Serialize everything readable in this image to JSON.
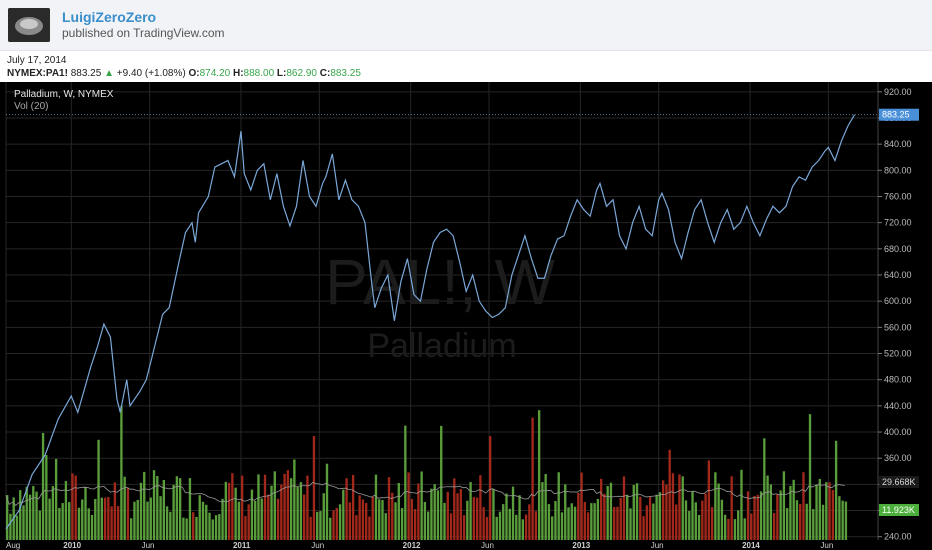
{
  "header": {
    "author": "LuigiZeroZero",
    "published": "published on TradingView.com"
  },
  "date": "July 17, 2014",
  "quote": {
    "symbol": "NYMEX:PA1!",
    "last": "883.25",
    "change": "+9.40 (+1.08%)",
    "open_label": "O:",
    "open": "874.20",
    "high_label": "H:",
    "high": "888.00",
    "low_label": "L:",
    "low": "862.90",
    "close_label": "C:",
    "close": "883.25"
  },
  "chart_data": {
    "type": "line",
    "legend_title": "Palladium, W, NYMEX",
    "volume_label": "Vol (20)",
    "watermark_symbol": "PAL!, W",
    "watermark_name": "Palladium",
    "colors": {
      "background": "#000000",
      "price_line": "#7aa7d8",
      "volume_up": "#5a9e3c",
      "volume_down": "#a2281b",
      "volume_ma": "#9a9a9a",
      "last_price_badge": "#4a90d9",
      "volume_badge": "#4caf3c"
    },
    "grid": true,
    "price_axis": {
      "ticks": [
        240,
        280,
        320,
        360,
        400,
        440,
        480,
        520,
        560,
        600,
        640,
        680,
        720,
        760,
        800,
        840,
        880,
        920
      ],
      "labels": [
        "240.00",
        "280.00",
        "320.00",
        "360.00",
        "400.00",
        "440.00",
        "480.00",
        "520.00",
        "560.00",
        "600.00",
        "640.00",
        "680.00",
        "720.00",
        "760.00",
        "800.00",
        "840.00",
        "880.00",
        "920.00"
      ],
      "range": [
        235,
        935
      ]
    },
    "last_price_label": "883.25",
    "volume_ma_label": "29.668K",
    "volume_last_label": "11.923K",
    "x_axis": {
      "labels": [
        "Aug",
        "2010",
        "Jun",
        "2011",
        "Jun",
        "2012",
        "Jun",
        "2013",
        "Jun",
        "2014",
        "Jun"
      ],
      "positions": [
        0,
        20,
        44,
        72,
        96,
        124,
        148,
        176,
        200,
        228,
        252
      ]
    },
    "weeks_total": 258,
    "price_series": [
      [
        0,
        252
      ],
      [
        4,
        280
      ],
      [
        8,
        335
      ],
      [
        12,
        365
      ],
      [
        16,
        420
      ],
      [
        20,
        455
      ],
      [
        22,
        430
      ],
      [
        26,
        500
      ],
      [
        28,
        530
      ],
      [
        30,
        565
      ],
      [
        32,
        545
      ],
      [
        34,
        450
      ],
      [
        35,
        430
      ],
      [
        37,
        480
      ],
      [
        38,
        440
      ],
      [
        41,
        462
      ],
      [
        43,
        480
      ],
      [
        45,
        520
      ],
      [
        48,
        580
      ],
      [
        50,
        590
      ],
      [
        53,
        660
      ],
      [
        55,
        705
      ],
      [
        57,
        720
      ],
      [
        58,
        690
      ],
      [
        59,
        735
      ],
      [
        62,
        760
      ],
      [
        64,
        805
      ],
      [
        66,
        810
      ],
      [
        68,
        815
      ],
      [
        70,
        790
      ],
      [
        72,
        860
      ],
      [
        73,
        795
      ],
      [
        75,
        770
      ],
      [
        77,
        800
      ],
      [
        79,
        810
      ],
      [
        81,
        755
      ],
      [
        83,
        795
      ],
      [
        85,
        745
      ],
      [
        87,
        715
      ],
      [
        89,
        745
      ],
      [
        91,
        815
      ],
      [
        93,
        760
      ],
      [
        95,
        745
      ],
      [
        97,
        780
      ],
      [
        98,
        790
      ],
      [
        100,
        825
      ],
      [
        102,
        755
      ],
      [
        104,
        785
      ],
      [
        106,
        755
      ],
      [
        108,
        745
      ],
      [
        110,
        720
      ],
      [
        112,
        630
      ],
      [
        113,
        590
      ],
      [
        115,
        620
      ],
      [
        117,
        640
      ],
      [
        119,
        570
      ],
      [
        121,
        630
      ],
      [
        123,
        665
      ],
      [
        125,
        610
      ],
      [
        127,
        600
      ],
      [
        129,
        650
      ],
      [
        131,
        690
      ],
      [
        133,
        705
      ],
      [
        135,
        710
      ],
      [
        137,
        700
      ],
      [
        139,
        660
      ],
      [
        141,
        615
      ],
      [
        143,
        640
      ],
      [
        145,
        600
      ],
      [
        147,
        585
      ],
      [
        149,
        575
      ],
      [
        151,
        580
      ],
      [
        153,
        590
      ],
      [
        155,
        640
      ],
      [
        157,
        670
      ],
      [
        159,
        700
      ],
      [
        161,
        665
      ],
      [
        163,
        635
      ],
      [
        165,
        635
      ],
      [
        167,
        670
      ],
      [
        169,
        695
      ],
      [
        171,
        700
      ],
      [
        173,
        730
      ],
      [
        175,
        755
      ],
      [
        177,
        740
      ],
      [
        179,
        730
      ],
      [
        181,
        770
      ],
      [
        182,
        780
      ],
      [
        184,
        745
      ],
      [
        186,
        755
      ],
      [
        188,
        700
      ],
      [
        190,
        680
      ],
      [
        192,
        720
      ],
      [
        194,
        745
      ],
      [
        196,
        710
      ],
      [
        198,
        700
      ],
      [
        200,
        755
      ],
      [
        201,
        765
      ],
      [
        203,
        740
      ],
      [
        205,
        690
      ],
      [
        207,
        665
      ],
      [
        209,
        705
      ],
      [
        211,
        740
      ],
      [
        213,
        755
      ],
      [
        215,
        720
      ],
      [
        217,
        690
      ],
      [
        219,
        720
      ],
      [
        221,
        740
      ],
      [
        223,
        710
      ],
      [
        225,
        720
      ],
      [
        227,
        745
      ],
      [
        229,
        720
      ],
      [
        231,
        700
      ],
      [
        233,
        725
      ],
      [
        235,
        745
      ],
      [
        237,
        735
      ],
      [
        239,
        745
      ],
      [
        241,
        775
      ],
      [
        243,
        790
      ],
      [
        245,
        785
      ],
      [
        247,
        805
      ],
      [
        249,
        815
      ],
      [
        251,
        830
      ],
      [
        252,
        835
      ],
      [
        254,
        815
      ],
      [
        256,
        845
      ],
      [
        258,
        868
      ],
      [
        260,
        885
      ]
    ],
    "volume_series_note": "",
    "volume_range": [
      0,
      420
    ]
  }
}
